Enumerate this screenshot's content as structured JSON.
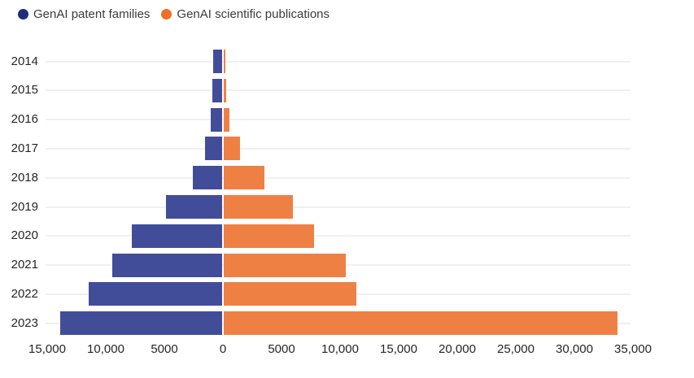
{
  "legend": {
    "items": [
      {
        "label": "GenAI patent families",
        "dot_color": "#1f2d7b"
      },
      {
        "label": "GenAI scientific publications",
        "dot_color": "#ed6e27"
      }
    ]
  },
  "chart_data": {
    "type": "bar",
    "variant": "diverging-horizontal",
    "title": "",
    "categories": [
      "2014",
      "2015",
      "2016",
      "2017",
      "2018",
      "2019",
      "2020",
      "2021",
      "2022",
      "2023"
    ],
    "series": [
      {
        "name": "GenAI patent families",
        "side": "left",
        "color": "#424d9a",
        "values": [
          730,
          850,
          1000,
          1450,
          2500,
          4800,
          7700,
          9400,
          11400,
          13800
        ]
      },
      {
        "name": "GenAI scientific publications",
        "side": "right",
        "color": "#ef8044",
        "values": [
          170,
          200,
          490,
          1370,
          3500,
          5900,
          7700,
          10450,
          11300,
          33600
        ]
      }
    ],
    "x_axis": {
      "range": [
        -15000,
        35000
      ],
      "tick_values": [
        -15000,
        -10000,
        -5000,
        0,
        5000,
        10000,
        15000,
        20000,
        25000,
        30000,
        35000
      ],
      "tick_labels": [
        "15,000",
        "10,000",
        "5000",
        "0",
        "5000",
        "10,000",
        "15,000",
        "20,000",
        "25,000",
        "30,000",
        "35,000"
      ]
    },
    "grid": {
      "horizontal_category_lines": true
    },
    "legend_position": "top-left"
  }
}
